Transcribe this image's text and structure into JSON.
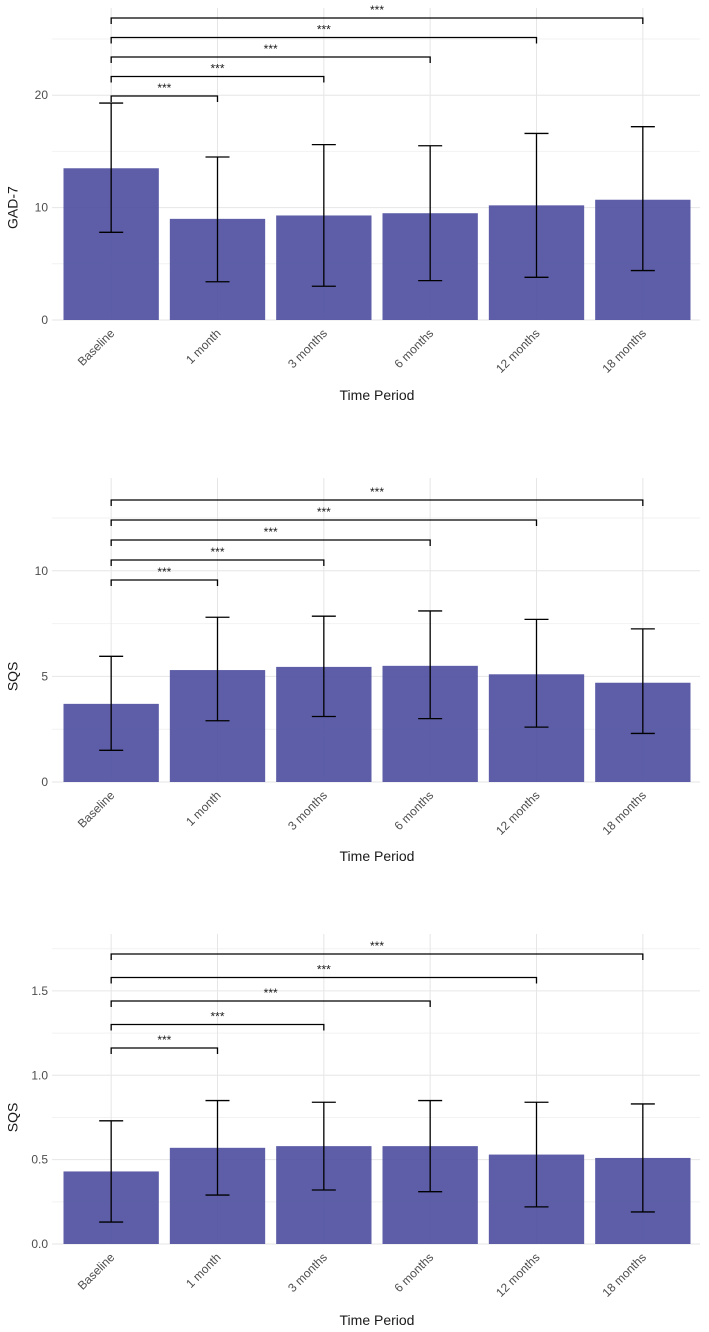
{
  "chart_data": [
    {
      "type": "bar",
      "categories": [
        "Baseline",
        "1 month",
        "3 months",
        "6 months",
        "12 months",
        "18 months"
      ],
      "values": [
        13.5,
        9.0,
        9.3,
        9.5,
        10.2,
        10.7
      ],
      "error_lower": [
        7.8,
        3.4,
        3.0,
        3.5,
        3.8,
        4.4
      ],
      "error_upper": [
        19.3,
        14.5,
        15.6,
        15.5,
        16.6,
        17.2
      ],
      "xlabel": "Time Period",
      "ylabel": "GAD-7",
      "ylim": [
        0,
        24.2
      ],
      "yticks": [
        0,
        10,
        20
      ],
      "grid": true,
      "bar_color": "#4b4d9d",
      "significance": [
        {
          "from": "Baseline",
          "to": "1 month",
          "level": 20.2,
          "label": "***"
        },
        {
          "from": "Baseline",
          "to": "3 months",
          "level": 22.0,
          "label": "***"
        },
        {
          "from": "Baseline",
          "to": "6 months",
          "level": 23.9,
          "label": "***"
        },
        {
          "from": "Baseline",
          "to": "12 months",
          "level": 25.8,
          "label": "***"
        },
        {
          "from": "Baseline",
          "to": "18 months",
          "level": 27.6,
          "label": "***"
        }
      ]
    },
    {
      "type": "bar",
      "categories": [
        "Baseline",
        "1 month",
        "3 months",
        "6 months",
        "12 months",
        "18 months"
      ],
      "values": [
        3.7,
        5.3,
        5.45,
        5.5,
        5.1,
        4.7
      ],
      "error_lower": [
        1.5,
        2.9,
        3.1,
        3.0,
        2.6,
        2.3
      ],
      "error_upper": [
        5.95,
        7.8,
        7.85,
        8.1,
        7.7,
        7.25
      ],
      "xlabel": "Time Period",
      "ylabel": "SQS",
      "ylim": [
        0,
        12.5
      ],
      "yticks": [
        0,
        5,
        10
      ],
      "grid": true,
      "bar_color": "#4b4d9d",
      "significance": [
        {
          "from": "Baseline",
          "to": "1 month",
          "level": 8.5,
          "label": "***"
        },
        {
          "from": "Baseline",
          "to": "3 months",
          "level": 9.3,
          "label": "***"
        },
        {
          "from": "Baseline",
          "to": "6 months",
          "level": 10.2,
          "label": "***"
        },
        {
          "from": "Baseline",
          "to": "12 months",
          "level": 11.05,
          "label": "***"
        },
        {
          "from": "Baseline",
          "to": "18 months",
          "level": 11.9,
          "label": "***"
        }
      ]
    },
    {
      "type": "bar",
      "categories": [
        "Baseline",
        "1 month",
        "3 months",
        "6 months",
        "12 months",
        "18 months"
      ],
      "values": [
        0.43,
        0.57,
        0.58,
        0.58,
        0.53,
        0.51
      ],
      "error_lower": [
        0.13,
        0.29,
        0.32,
        0.31,
        0.22,
        0.19
      ],
      "error_upper": [
        0.73,
        0.85,
        0.84,
        0.85,
        0.84,
        0.83
      ],
      "xlabel": "Time Period",
      "ylabel": "SQS",
      "ylim": [
        0,
        1.6
      ],
      "yticks": [
        0.0,
        0.5,
        1.0,
        1.5
      ],
      "grid": true,
      "bar_color": "#4b4d9d",
      "significance": [
        {
          "from": "Baseline",
          "to": "1 month",
          "level": 0.94,
          "label": "***"
        },
        {
          "from": "Baseline",
          "to": "3 months",
          "level": 1.09,
          "label": "***"
        },
        {
          "from": "Baseline",
          "to": "6 months",
          "level": 1.24,
          "label": "***"
        },
        {
          "from": "Baseline",
          "to": "12 months",
          "level": 1.39,
          "label": "***"
        },
        {
          "from": "Baseline",
          "to": "18 months",
          "level": 1.54,
          "label": "***"
        }
      ]
    }
  ]
}
